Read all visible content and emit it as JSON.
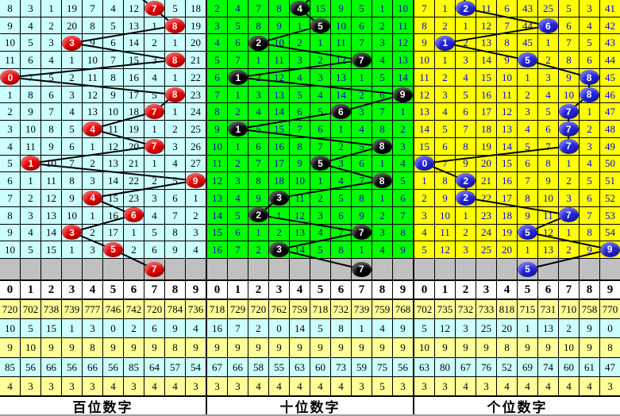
{
  "colors": {
    "grid_line": "#000000",
    "line": "#000000",
    "gray_row": "#C0C0C0",
    "header_bg": "#FFFFFF",
    "footer_bg": "#FFFFFF",
    "stats_row_bgs": [
      "#FFFF99",
      "#CCFFFF",
      "#FFFF99",
      "#CCFFFF",
      "#FFFF99"
    ]
  },
  "chart_data": [
    {
      "type": "table",
      "title": "百位数字",
      "bg": "#CCFFFF",
      "text_color": "#000000",
      "ball_color": "#E60000",
      "entry_from_col": 5.4,
      "digit_header": [
        "0",
        "1",
        "2",
        "3",
        "4",
        "5",
        "6",
        "7",
        "8",
        "9"
      ],
      "rows": [
        {
          "cells": [
            "8",
            "3",
            "1",
            "19",
            "7",
            "4",
            "12",
            "7",
            "5",
            "18"
          ],
          "ball_col": 7
        },
        {
          "cells": [
            "9",
            "4",
            "2",
            "20",
            "8",
            "5",
            "13",
            "1",
            "8",
            "19"
          ],
          "ball_col": 8
        },
        {
          "cells": [
            "10",
            "5",
            "3",
            "3",
            "9",
            "6",
            "14",
            "2",
            "1",
            "20"
          ],
          "ball_col": 3
        },
        {
          "cells": [
            "11",
            "6",
            "4",
            "1",
            "10",
            "7",
            "15",
            "3",
            "8",
            "21"
          ],
          "ball_col": 8
        },
        {
          "cells": [
            "0",
            "7",
            "5",
            "2",
            "11",
            "8",
            "16",
            "4",
            "1",
            "22"
          ],
          "ball_col": 0
        },
        {
          "cells": [
            "1",
            "8",
            "6",
            "3",
            "12",
            "9",
            "17",
            "5",
            "8",
            "23"
          ],
          "ball_col": 8
        },
        {
          "cells": [
            "2",
            "9",
            "7",
            "4",
            "13",
            "10",
            "18",
            "7",
            "1",
            "24"
          ],
          "ball_col": 7
        },
        {
          "cells": [
            "3",
            "10",
            "8",
            "5",
            "4",
            "11",
            "19",
            "1",
            "2",
            "25"
          ],
          "ball_col": 4
        },
        {
          "cells": [
            "4",
            "11",
            "9",
            "6",
            "1",
            "12",
            "20",
            "7",
            "3",
            "26"
          ],
          "ball_col": 7
        },
        {
          "cells": [
            "5",
            "1",
            "10",
            "7",
            "2",
            "13",
            "21",
            "1",
            "4",
            "27"
          ],
          "ball_col": 1
        },
        {
          "cells": [
            "6",
            "1",
            "11",
            "8",
            "3",
            "14",
            "22",
            "2",
            "5",
            "9"
          ],
          "ball_col": 9
        },
        {
          "cells": [
            "7",
            "2",
            "12",
            "9",
            "4",
            "15",
            "23",
            "3",
            "6",
            "1"
          ],
          "ball_col": 4
        },
        {
          "cells": [
            "8",
            "3",
            "13",
            "10",
            "1",
            "16",
            "6",
            "4",
            "7",
            "2"
          ],
          "ball_col": 6
        },
        {
          "cells": [
            "9",
            "4",
            "14",
            "3",
            "2",
            "17",
            "1",
            "5",
            "8",
            "3"
          ],
          "ball_col": 3
        },
        {
          "cells": [
            "10",
            "5",
            "15",
            "1",
            "3",
            "5",
            "2",
            "6",
            "9",
            "4"
          ],
          "ball_col": 5
        }
      ],
      "tail_ball": {
        "col": 7,
        "value": "7"
      },
      "stats": [
        [
          "720",
          "702",
          "738",
          "739",
          "777",
          "746",
          "742",
          "720",
          "784",
          "736"
        ],
        [
          "10",
          "5",
          "15",
          "1",
          "3",
          "0",
          "2",
          "6",
          "9",
          "4"
        ],
        [
          "9",
          "10",
          "9",
          "9",
          "8",
          "9",
          "9",
          "9",
          "8",
          "9"
        ],
        [
          "85",
          "56",
          "66",
          "56",
          "66",
          "56",
          "85",
          "64",
          "57",
          "54"
        ],
        [
          "4",
          "3",
          "3",
          "3",
          "3",
          "4",
          "3",
          "4",
          "4",
          "3"
        ]
      ]
    },
    {
      "type": "table",
      "title": "十位数字",
      "bg": "#00FF00",
      "text_color": "#0000AA",
      "ball_color": "#000000",
      "entry_from_col": 5.35,
      "digit_header": [
        "0",
        "1",
        "2",
        "3",
        "4",
        "5",
        "6",
        "7",
        "8",
        "9"
      ],
      "rows": [
        {
          "cells": [
            "2",
            "4",
            "7",
            "8",
            "4",
            "15",
            "9",
            "5",
            "1",
            "10"
          ],
          "ball_col": 4
        },
        {
          "cells": [
            "3",
            "5",
            "8",
            "9",
            "1",
            "5",
            "10",
            "6",
            "2",
            "11"
          ],
          "ball_col": 5
        },
        {
          "cells": [
            "4",
            "6",
            "2",
            "10",
            "2",
            "1",
            "11",
            "7",
            "3",
            "12"
          ],
          "ball_col": 2
        },
        {
          "cells": [
            "5",
            "7",
            "1",
            "11",
            "3",
            "2",
            "12",
            "7",
            "4",
            "13"
          ],
          "ball_col": 7
        },
        {
          "cells": [
            "6",
            "1",
            "2",
            "12",
            "4",
            "3",
            "13",
            "1",
            "5",
            "14"
          ],
          "ball_col": 1
        },
        {
          "cells": [
            "7",
            "1",
            "3",
            "13",
            "5",
            "4",
            "14",
            "2",
            "6",
            "9"
          ],
          "ball_col": 9
        },
        {
          "cells": [
            "8",
            "2",
            "4",
            "14",
            "6",
            "5",
            "6",
            "3",
            "7",
            "1"
          ],
          "ball_col": 6
        },
        {
          "cells": [
            "9",
            "1",
            "5",
            "15",
            "7",
            "6",
            "1",
            "4",
            "8",
            "2"
          ],
          "ball_col": 1
        },
        {
          "cells": [
            "10",
            "1",
            "6",
            "16",
            "8",
            "7",
            "2",
            "5",
            "8",
            "3"
          ],
          "ball_col": 8
        },
        {
          "cells": [
            "11",
            "2",
            "7",
            "17",
            "9",
            "5",
            "3",
            "6",
            "1",
            "4"
          ],
          "ball_col": 5
        },
        {
          "cells": [
            "12",
            "3",
            "8",
            "18",
            "10",
            "1",
            "4",
            "7",
            "8",
            "5"
          ],
          "ball_col": 8
        },
        {
          "cells": [
            "13",
            "4",
            "9",
            "3",
            "11",
            "2",
            "5",
            "8",
            "1",
            "6"
          ],
          "ball_col": 3
        },
        {
          "cells": [
            "14",
            "5",
            "2",
            "1",
            "12",
            "3",
            "6",
            "9",
            "2",
            "7"
          ],
          "ball_col": 2
        },
        {
          "cells": [
            "15",
            "6",
            "1",
            "2",
            "13",
            "4",
            "7",
            "7",
            "3",
            "8"
          ],
          "ball_col": 7
        },
        {
          "cells": [
            "16",
            "7",
            "2",
            "3",
            "14",
            "5",
            "8",
            "1",
            "4",
            "9"
          ],
          "ball_col": 3
        }
      ],
      "tail_ball": {
        "col": 7,
        "value": "7"
      },
      "stats": [
        [
          "718",
          "729",
          "720",
          "762",
          "759",
          "718",
          "732",
          "739",
          "759",
          "768"
        ],
        [
          "16",
          "7",
          "2",
          "0",
          "14",
          "5",
          "8",
          "1",
          "4",
          "9"
        ],
        [
          "9",
          "9",
          "9",
          "9",
          "9",
          "9",
          "9",
          "9",
          "9",
          "9"
        ],
        [
          "67",
          "66",
          "58",
          "55",
          "63",
          "60",
          "73",
          "59",
          "75",
          "56"
        ],
        [
          "3",
          "3",
          "4",
          "4",
          "4",
          "4",
          "4",
          "3",
          "5",
          "3"
        ]
      ]
    },
    {
      "type": "table",
      "title": "个位数字",
      "bg": "#FFFF00",
      "text_color": "#0000EE",
      "ball_color": "#2323DD",
      "entry_from_col": 1.8,
      "digit_header": [
        "0",
        "1",
        "2",
        "3",
        "4",
        "5",
        "6",
        "7",
        "8",
        "9"
      ],
      "rows": [
        {
          "cells": [
            "7",
            "1",
            "2",
            "11",
            "6",
            "43",
            "25",
            "5",
            "3",
            "41"
          ],
          "ball_col": 2
        },
        {
          "cells": [
            "8",
            "2",
            "1",
            "12",
            "7",
            "44",
            "6",
            "6",
            "4",
            "42"
          ],
          "ball_col": 6
        },
        {
          "cells": [
            "9",
            "1",
            "2",
            "13",
            "8",
            "45",
            "1",
            "7",
            "5",
            "43"
          ],
          "ball_col": 1
        },
        {
          "cells": [
            "10",
            "1",
            "3",
            "14",
            "9",
            "5",
            "2",
            "8",
            "6",
            "44"
          ],
          "ball_col": 5
        },
        {
          "cells": [
            "11",
            "2",
            "4",
            "15",
            "10",
            "1",
            "3",
            "9",
            "8",
            "45"
          ],
          "ball_col": 8
        },
        {
          "cells": [
            "12",
            "3",
            "5",
            "16",
            "11",
            "2",
            "4",
            "10",
            "8",
            "46"
          ],
          "ball_col": 8
        },
        {
          "cells": [
            "13",
            "4",
            "6",
            "17",
            "12",
            "3",
            "5",
            "7",
            "1",
            "47"
          ],
          "ball_col": 7
        },
        {
          "cells": [
            "14",
            "5",
            "7",
            "18",
            "13",
            "4",
            "6",
            "7",
            "2",
            "48"
          ],
          "ball_col": 7
        },
        {
          "cells": [
            "15",
            "6",
            "8",
            "19",
            "14",
            "5",
            "7",
            "7",
            "3",
            "49"
          ],
          "ball_col": 7
        },
        {
          "cells": [
            "0",
            "7",
            "9",
            "20",
            "15",
            "6",
            "8",
            "1",
            "4",
            "50"
          ],
          "ball_col": 0
        },
        {
          "cells": [
            "1",
            "8",
            "2",
            "21",
            "16",
            "7",
            "9",
            "2",
            "5",
            "51"
          ],
          "ball_col": 2
        },
        {
          "cells": [
            "2",
            "9",
            "2",
            "22",
            "17",
            "8",
            "10",
            "3",
            "6",
            "52"
          ],
          "ball_col": 2
        },
        {
          "cells": [
            "3",
            "10",
            "1",
            "23",
            "18",
            "9",
            "11",
            "7",
            "7",
            "53"
          ],
          "ball_col": 7
        },
        {
          "cells": [
            "4",
            "11",
            "2",
            "24",
            "19",
            "5",
            "12",
            "1",
            "8",
            "54"
          ],
          "ball_col": 5
        },
        {
          "cells": [
            "5",
            "12",
            "3",
            "25",
            "20",
            "1",
            "13",
            "2",
            "9",
            "9"
          ],
          "ball_col": 9
        }
      ],
      "tail_ball": {
        "col": 5,
        "value": "5"
      },
      "stats": [
        [
          "702",
          "735",
          "732",
          "733",
          "818",
          "715",
          "731",
          "710",
          "758",
          "770"
        ],
        [
          "5",
          "12",
          "3",
          "25",
          "20",
          "1",
          "13",
          "2",
          "9",
          "0"
        ],
        [
          "10",
          "9",
          "9",
          "9",
          "8",
          "9",
          "9",
          "10",
          "9",
          "8"
        ],
        [
          "63",
          "80",
          "67",
          "76",
          "52",
          "69",
          "74",
          "60",
          "61",
          "47"
        ],
        [
          "3",
          "3",
          "4",
          "3",
          "4",
          "4",
          "4",
          "4",
          "4",
          "3"
        ]
      ]
    }
  ]
}
